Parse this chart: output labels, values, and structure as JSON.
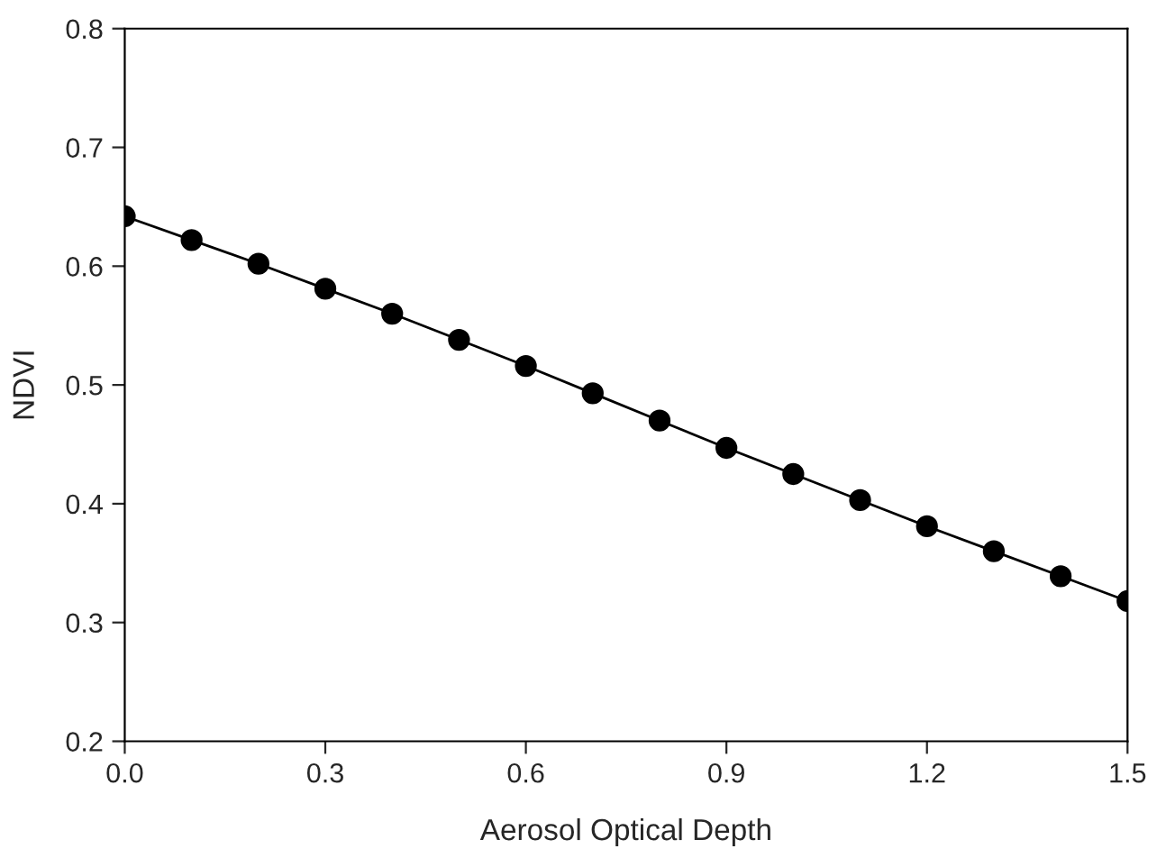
{
  "chart_data": {
    "type": "line",
    "xlabel": "Aerosol Optical Depth",
    "ylabel": "NDVI",
    "x": [
      0.0,
      0.1,
      0.2,
      0.3,
      0.4,
      0.5,
      0.6,
      0.7,
      0.8,
      0.9,
      1.0,
      1.1,
      1.2,
      1.3,
      1.4,
      1.5
    ],
    "series": [
      {
        "color": "#000000",
        "values": [
          0.642,
          0.622,
          0.602,
          0.581,
          0.56,
          0.538,
          0.516,
          0.493,
          0.47,
          0.447,
          0.425,
          0.403,
          0.381,
          0.36,
          0.339,
          0.318
        ]
      }
    ],
    "xlim": [
      0.0,
      1.5
    ],
    "ylim": [
      0.2,
      0.8
    ],
    "xticks": [
      {
        "value": 0.0,
        "label": "0.0"
      },
      {
        "value": 0.3,
        "label": "0.3"
      },
      {
        "value": 0.6,
        "label": "0.6"
      },
      {
        "value": 0.9,
        "label": "0.9"
      },
      {
        "value": 1.2,
        "label": "1.2"
      },
      {
        "value": 1.5,
        "label": "1.5"
      }
    ],
    "yticks": [
      0.2,
      0.3,
      0.4,
      0.5,
      0.6,
      0.7,
      0.8
    ],
    "grid": false,
    "legend": false,
    "marker": "circle",
    "line_style": "solid"
  }
}
